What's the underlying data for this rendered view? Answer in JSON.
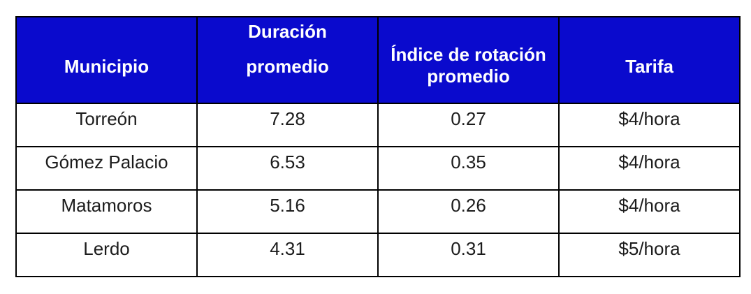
{
  "table": {
    "header": {
      "municipio": [
        "Municipio"
      ],
      "duracion": [
        "Duración",
        "promedio"
      ],
      "indice": [
        "Índice de rotación",
        "promedio"
      ],
      "tarifa": [
        "Tarifa"
      ]
    },
    "rows": [
      [
        "Torreón",
        "7.28",
        "0.27",
        "$4/hora"
      ],
      [
        "Gómez Palacio",
        "6.53",
        "0.35",
        "$4/hora"
      ],
      [
        "Matamoros",
        "5.16",
        "0.26",
        "$4/hora"
      ],
      [
        "Lerdo",
        "4.31",
        "0.31",
        "$5/hora"
      ]
    ]
  },
  "chart_data": {
    "type": "table",
    "title": "",
    "columns": [
      "Municipio",
      "Duración promedio",
      "Índice de rotación promedio",
      "Tarifa"
    ],
    "rows": [
      {
        "municipio": "Torreón",
        "duracion_promedio": 7.28,
        "indice_rotacion_promedio": 0.27,
        "tarifa": "$4/hora"
      },
      {
        "municipio": "Gómez Palacio",
        "duracion_promedio": 6.53,
        "indice_rotacion_promedio": 0.35,
        "tarifa": "$4/hora"
      },
      {
        "municipio": "Matamoros",
        "duracion_promedio": 5.16,
        "indice_rotacion_promedio": 0.26,
        "tarifa": "$4/hora"
      },
      {
        "municipio": "Lerdo",
        "duracion_promedio": 4.31,
        "indice_rotacion_promedio": 0.31,
        "tarifa": "$5/hora"
      }
    ]
  },
  "colors": {
    "header_bg": "#0a0acd",
    "header_text": "#ffffff",
    "body_text": "#1c1c1c",
    "border": "#000000",
    "page_bg": "#ffffff"
  }
}
